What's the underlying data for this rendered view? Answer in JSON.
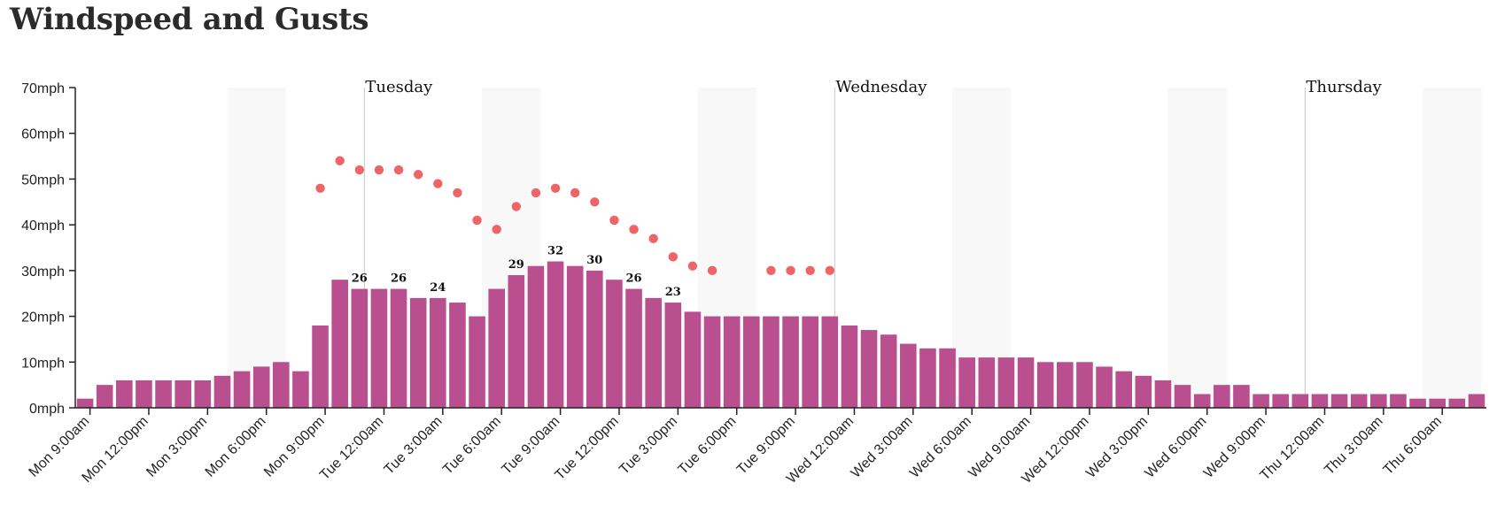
{
  "title": "Windspeed and Gusts",
  "colors": {
    "bar": "#b94f8f",
    "gust": "#ef6464",
    "night_band": "#f8f8f8",
    "day_line": "#c8c8c8",
    "axis": "#222222"
  },
  "chart_data": {
    "type": "bar",
    "title": "Windspeed and Gusts",
    "ylim": [
      0,
      70
    ],
    "y_unit": "mph",
    "y_ticks": [
      "0mph",
      "10mph",
      "20mph",
      "30mph",
      "40mph",
      "50mph",
      "60mph",
      "70mph"
    ],
    "x_ticks": [
      "Mon 9:00am",
      "Mon 12:00pm",
      "Mon 3:00pm",
      "Mon 6:00pm",
      "Mon 9:00pm",
      "Tue 12:00am",
      "Tue 3:00am",
      "Tue 6:00am",
      "Tue 9:00am",
      "Tue 12:00pm",
      "Tue 3:00pm",
      "Tue 6:00pm",
      "Tue 9:00pm",
      "Wed 12:00am",
      "Wed 3:00am",
      "Wed 6:00am",
      "Wed 9:00am",
      "Wed 12:00pm",
      "Wed 3:00pm",
      "Wed 6:00pm",
      "Wed 9:00pm",
      "Thu 12:00am",
      "Thu 3:00am",
      "Thu 6:00am"
    ],
    "day_markers": [
      {
        "label": "Tuesday",
        "hour": 14.75
      },
      {
        "label": "Wednesday",
        "hour": 38.75
      },
      {
        "label": "Thursday",
        "hour": 62.75
      }
    ],
    "night_bands": [
      [
        7.75,
        10.75
      ],
      [
        20.75,
        23.75
      ],
      [
        31.75,
        34.75
      ],
      [
        44.75,
        47.75
      ],
      [
        55.75,
        58.75
      ],
      [
        68.75,
        71.75
      ]
    ],
    "series": [
      {
        "type": "bar",
        "values": [
          2,
          5,
          6,
          6,
          6,
          6,
          6,
          7,
          8,
          9,
          10,
          8,
          18,
          28,
          26,
          26,
          26,
          24,
          24,
          23,
          20,
          26,
          29,
          31,
          32,
          31,
          30,
          28,
          26,
          24,
          23,
          21,
          20,
          20,
          20,
          20,
          20,
          20,
          20,
          18,
          17,
          16,
          14,
          13,
          13,
          11,
          11,
          11,
          11,
          10,
          10,
          10,
          9,
          8,
          7,
          6,
          5,
          3,
          5,
          5,
          3,
          3,
          3,
          3,
          3,
          3,
          3,
          3,
          2,
          2,
          2,
          3
        ]
      },
      {
        "type": "scatter",
        "values": [
          null,
          null,
          null,
          null,
          null,
          null,
          null,
          null,
          null,
          null,
          null,
          null,
          48,
          54,
          52,
          52,
          52,
          51,
          49,
          47,
          41,
          39,
          44,
          47,
          48,
          47,
          45,
          41,
          39,
          37,
          33,
          31,
          30,
          null,
          null,
          30,
          30,
          30,
          30,
          null,
          null,
          null,
          null,
          null,
          null,
          null,
          null,
          null,
          null,
          null,
          null,
          null,
          null,
          null,
          null,
          null,
          null,
          null,
          null,
          null,
          null,
          null,
          null,
          null,
          null,
          null,
          null,
          null,
          null,
          null,
          null,
          null
        ]
      }
    ],
    "data_labels": [
      {
        "index": 14,
        "text": "26"
      },
      {
        "index": 16,
        "text": "26"
      },
      {
        "index": 18,
        "text": "24"
      },
      {
        "index": 22,
        "text": "29"
      },
      {
        "index": 24,
        "text": "32"
      },
      {
        "index": 26,
        "text": "30"
      },
      {
        "index": 28,
        "text": "26"
      },
      {
        "index": 30,
        "text": "23"
      }
    ]
  }
}
